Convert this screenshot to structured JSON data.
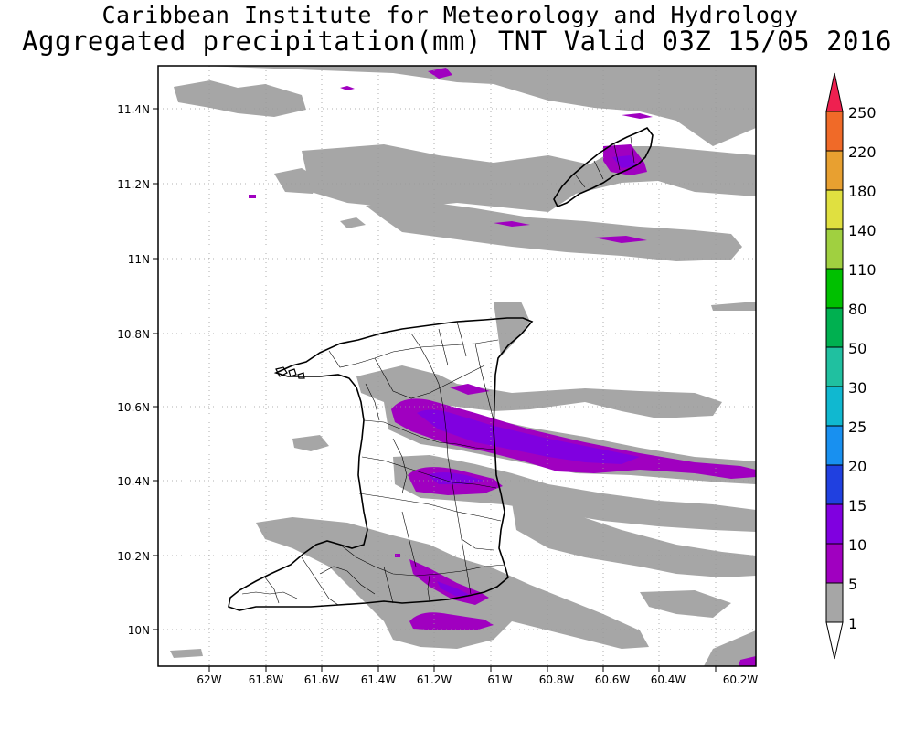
{
  "header": {
    "institute": "Caribbean Institute for Meteorology and Hydrology",
    "product": "Aggregated precipitation(mm) TNT Valid 03Z 15/05 2016"
  },
  "map": {
    "lon_labels": [
      "62W",
      "61.8W",
      "61.6W",
      "61.4W",
      "61.2W",
      "61W",
      "60.8W",
      "60.6W",
      "60.4W",
      "60.2W"
    ],
    "lat_labels": [
      "11.4N",
      "11.2N",
      "11N",
      "10.8N",
      "10.6N",
      "10.4N",
      "10.2N",
      "10N"
    ]
  },
  "legend": {
    "levels": [
      "250",
      "220",
      "180",
      "140",
      "110",
      "80",
      "50",
      "30",
      "25",
      "20",
      "15",
      "10",
      "5",
      "1"
    ],
    "colors": {
      "250": "#ee2050",
      "220": "#f06a28",
      "180": "#e8a030",
      "140": "#e0e040",
      "110": "#a0d040",
      "80": "#00c000",
      "50": "#00b050",
      "30": "#20c0a0",
      "25": "#10b8d0",
      "20": "#1890f0",
      "15": "#2040e0",
      "10": "#8000e0",
      "5": "#a000c0",
      "1": "#a6a6a6"
    }
  }
}
